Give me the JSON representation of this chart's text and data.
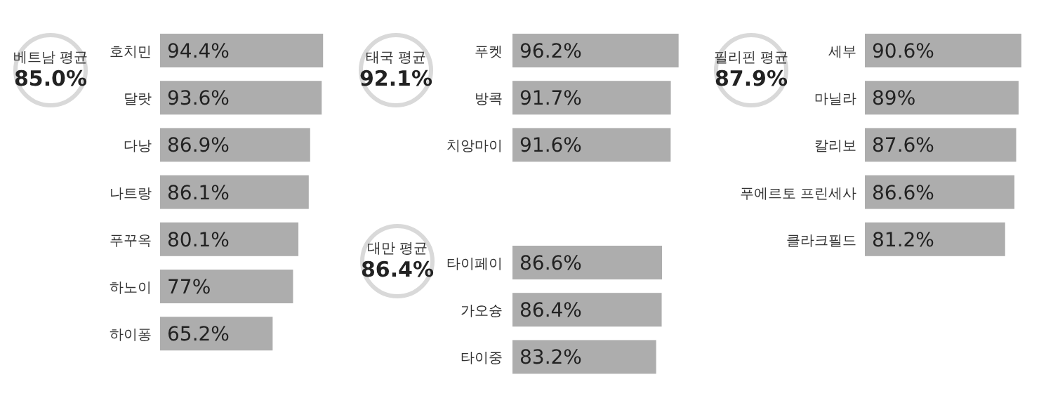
{
  "chart_data": [
    {
      "type": "bar",
      "orientation": "horizontal",
      "title": "베트남 평균",
      "subtitle": "85.0%",
      "categories": [
        "호치민",
        "달랏",
        "다낭",
        "나트랑",
        "푸꾸옥",
        "하노이",
        "하이퐁"
      ],
      "values": [
        94.4,
        93.6,
        86.9,
        86.1,
        80.1,
        77,
        65.2
      ],
      "value_labels": [
        "94.4%",
        "93.6%",
        "86.9%",
        "86.1%",
        "80.1%",
        "77%",
        "65.2%"
      ],
      "color": "#adadad"
    },
    {
      "type": "bar",
      "orientation": "horizontal",
      "title": "태국 평균",
      "subtitle": "92.1%",
      "categories": [
        "푸켓",
        "방콕",
        "치앙마이"
      ],
      "values": [
        96.2,
        91.7,
        91.6
      ],
      "value_labels": [
        "96.2%",
        "91.7%",
        "91.6%"
      ],
      "color": "#adadad"
    },
    {
      "type": "bar",
      "orientation": "horizontal",
      "title": "필리핀 평균",
      "subtitle": "87.9%",
      "categories": [
        "세부",
        "마닐라",
        "칼리보",
        "푸에르토 프린세사",
        "클라크필드"
      ],
      "values": [
        90.6,
        89,
        87.6,
        86.6,
        81.2
      ],
      "value_labels": [
        "90.6%",
        "89%",
        "87.6%",
        "86.6%",
        "81.2%"
      ],
      "color": "#adadad"
    },
    {
      "type": "bar",
      "orientation": "horizontal",
      "title": "대만 평균",
      "subtitle": "86.4%",
      "categories": [
        "타이페이",
        "가오슝",
        "타이중"
      ],
      "values": [
        86.6,
        86.4,
        83.2
      ],
      "value_labels": [
        "86.6%",
        "86.4%",
        "83.2%"
      ],
      "color": "#adadad"
    }
  ]
}
